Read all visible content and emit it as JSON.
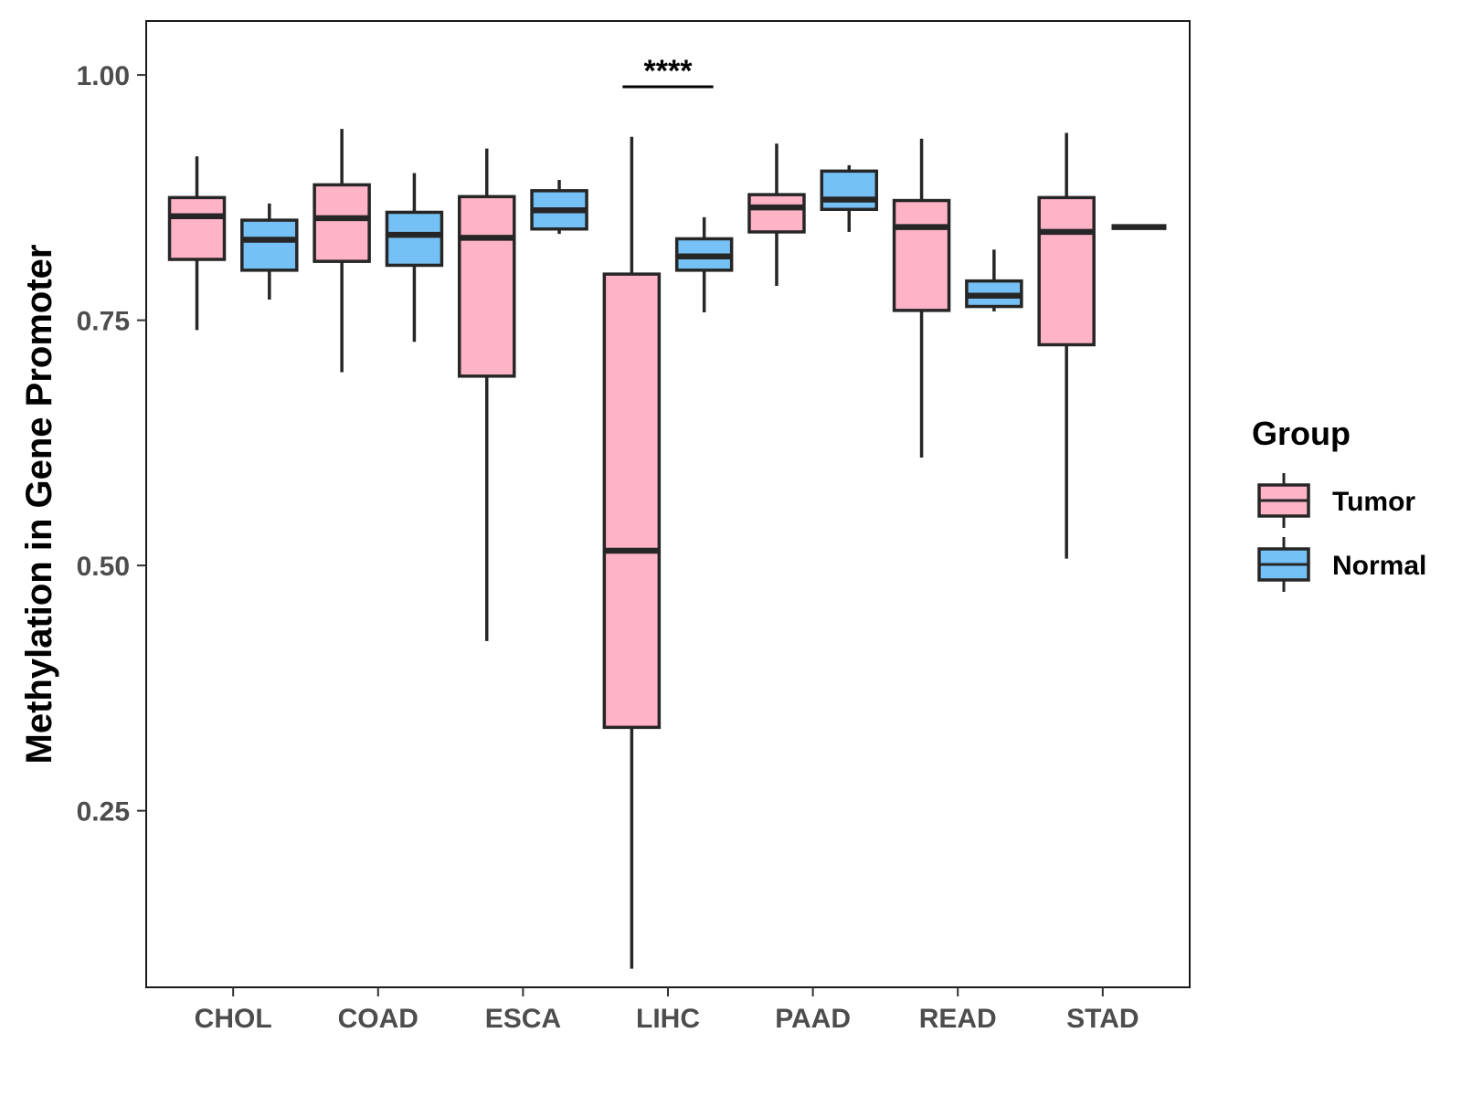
{
  "chart_data": {
    "type": "boxplot",
    "title": "",
    "xlabel": "",
    "ylabel": "Methylation in Gene Promoter",
    "ylim": [
      0.07,
      1.055
    ],
    "yticks": [
      0.25,
      0.5,
      0.75,
      1.0
    ],
    "ytick_labels": [
      "0.25",
      "0.50",
      "0.75",
      "1.00"
    ],
    "categories": [
      "CHOL",
      "COAD",
      "ESCA",
      "LIHC",
      "PAAD",
      "READ",
      "STAD"
    ],
    "grid": false,
    "legend": {
      "title": "Group",
      "position": "right"
    },
    "series": [
      {
        "name": "Tumor",
        "color": "#ffb3c6",
        "boxes": [
          {
            "category": "CHOL",
            "min": 0.74,
            "q1": 0.812,
            "median": 0.856,
            "q3": 0.875,
            "max": 0.917
          },
          {
            "category": "COAD",
            "min": 0.697,
            "q1": 0.81,
            "median": 0.854,
            "q3": 0.888,
            "max": 0.945
          },
          {
            "category": "ESCA",
            "min": 0.423,
            "q1": 0.693,
            "median": 0.834,
            "q3": 0.876,
            "max": 0.925
          },
          {
            "category": "LIHC",
            "min": 0.089,
            "q1": 0.335,
            "median": 0.515,
            "q3": 0.797,
            "max": 0.937
          },
          {
            "category": "PAAD",
            "min": 0.785,
            "q1": 0.84,
            "median": 0.865,
            "q3": 0.878,
            "max": 0.93
          },
          {
            "category": "READ",
            "min": 0.61,
            "q1": 0.76,
            "median": 0.845,
            "q3": 0.872,
            "max": 0.935
          },
          {
            "category": "STAD",
            "min": 0.507,
            "q1": 0.725,
            "median": 0.84,
            "q3": 0.875,
            "max": 0.941
          }
        ]
      },
      {
        "name": "Normal",
        "color": "#75c1f6",
        "boxes": [
          {
            "category": "CHOL",
            "min": 0.771,
            "q1": 0.801,
            "median": 0.832,
            "q3": 0.852,
            "max": 0.869
          },
          {
            "category": "COAD",
            "min": 0.728,
            "q1": 0.806,
            "median": 0.837,
            "q3": 0.86,
            "max": 0.9
          },
          {
            "category": "ESCA",
            "min": 0.838,
            "q1": 0.843,
            "median": 0.862,
            "q3": 0.882,
            "max": 0.893
          },
          {
            "category": "LIHC",
            "min": 0.758,
            "q1": 0.801,
            "median": 0.815,
            "q3": 0.833,
            "max": 0.855
          },
          {
            "category": "PAAD",
            "min": 0.84,
            "q1": 0.863,
            "median": 0.873,
            "q3": 0.902,
            "max": 0.908
          },
          {
            "category": "READ",
            "min": 0.759,
            "q1": 0.764,
            "median": 0.775,
            "q3": 0.79,
            "max": 0.822
          },
          {
            "category": "STAD",
            "min": 0.845,
            "q1": 0.845,
            "median": 0.845,
            "q3": 0.845,
            "max": 0.845
          }
        ]
      }
    ],
    "annotations": [
      {
        "category": "LIHC",
        "text": "****",
        "y": 0.988
      }
    ]
  }
}
